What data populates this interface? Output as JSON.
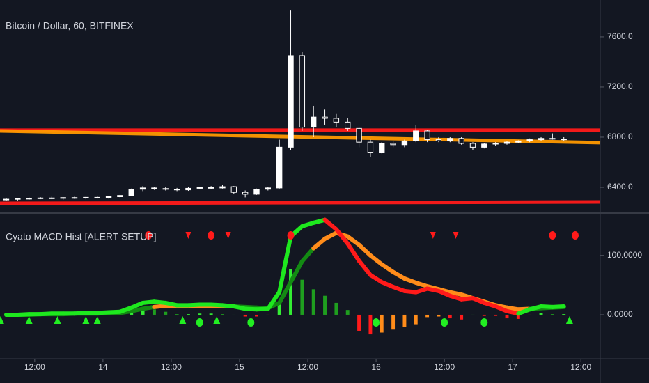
{
  "chart_data": [
    {
      "type": "candlestick",
      "title": "Bitcoin / Dollar, 60, BITFINEX",
      "x": [
        -5,
        -3,
        -1,
        1,
        3,
        5,
        7,
        9,
        11,
        13,
        15,
        17,
        19,
        21,
        23,
        25,
        27,
        29,
        31,
        33,
        35,
        37,
        39,
        41,
        43,
        45,
        47,
        49,
        51,
        53,
        55,
        57,
        59,
        61,
        63,
        65,
        67,
        69,
        71,
        73,
        75,
        77,
        79,
        81,
        83,
        85,
        87,
        89,
        91,
        93
      ],
      "open": [
        6300,
        6305,
        6310,
        6312,
        6315,
        6312,
        6318,
        6315,
        6320,
        6318,
        6325,
        6335,
        6385,
        6395,
        6390,
        6385,
        6380,
        6392,
        6398,
        6395,
        6405,
        6360,
        6345,
        6385,
        6395,
        6720,
        7450,
        6880,
        6960,
        6950,
        6920,
        6870,
        6760,
        6680,
        6750,
        6740,
        6770,
        6850,
        6780,
        6770,
        6790,
        6750,
        6720,
        6745,
        6750,
        6760,
        6770,
        6780,
        6790,
        6785
      ],
      "high": [
        6315,
        6315,
        6320,
        6322,
        6325,
        6322,
        6325,
        6325,
        6330,
        6330,
        6340,
        6390,
        6410,
        6405,
        6400,
        6395,
        6400,
        6405,
        6410,
        6420,
        6410,
        6375,
        6390,
        6405,
        6780,
        7810,
        7480,
        7050,
        7020,
        6990,
        6950,
        6880,
        6780,
        6760,
        6770,
        6780,
        6900,
        6860,
        6800,
        6800,
        6800,
        6760,
        6750,
        6760,
        6770,
        6775,
        6790,
        6800,
        6830,
        6800
      ],
      "low": [
        6290,
        6295,
        6300,
        6305,
        6305,
        6302,
        6308,
        6305,
        6310,
        6310,
        6318,
        6330,
        6370,
        6380,
        6375,
        6370,
        6372,
        6385,
        6385,
        6390,
        6350,
        6320,
        6340,
        6375,
        6390,
        6700,
        6850,
        6800,
        6900,
        6880,
        6850,
        6720,
        6640,
        6670,
        6720,
        6720,
        6760,
        6760,
        6760,
        6760,
        6740,
        6700,
        6710,
        6730,
        6740,
        6750,
        6760,
        6770,
        6780,
        6770
      ],
      "close": [
        6305,
        6310,
        6312,
        6315,
        6312,
        6318,
        6315,
        6320,
        6318,
        6325,
        6335,
        6385,
        6395,
        6390,
        6385,
        6380,
        6392,
        6398,
        6395,
        6405,
        6360,
        6345,
        6385,
        6395,
        6720,
        7450,
        6880,
        6960,
        6950,
        6920,
        6870,
        6760,
        6680,
        6750,
        6740,
        6770,
        6850,
        6780,
        6770,
        6790,
        6750,
        6720,
        6745,
        6750,
        6760,
        6770,
        6780,
        6790,
        6785,
        6782
      ],
      "color": "#ffffff",
      "levels": [
        {
          "from": 6856,
          "to": 6856,
          "color": "#ff1a1a"
        },
        {
          "from": 6850,
          "to": 6756,
          "color": "#ff9900"
        },
        {
          "from": 6272,
          "to": 6283,
          "color": "#ff1a1a"
        }
      ],
      "xlim": [
        -6.1,
        99.4
      ],
      "ylim": [
        6200,
        7894
      ],
      "yticks": [
        {
          "value": 6400,
          "label": "6400.0"
        },
        {
          "value": 6800,
          "label": "6800.0"
        },
        {
          "value": 7200,
          "label": "7200.0"
        },
        {
          "value": 7600,
          "label": "7600.0"
        }
      ]
    },
    {
      "type": "line",
      "title": "Cyato MACD Hist [ALERT SETUP]",
      "x": [
        -5,
        -3,
        -1,
        1,
        3,
        5,
        7,
        9,
        11,
        13,
        15,
        17,
        19,
        21,
        23,
        25,
        27,
        29,
        31,
        33,
        35,
        37,
        39,
        41,
        43,
        45,
        47,
        49,
        51,
        53,
        55,
        57,
        59,
        61,
        63,
        65,
        67,
        69,
        71,
        73,
        75,
        77,
        79,
        81,
        83,
        85,
        87,
        89,
        91,
        93
      ],
      "series": [
        {
          "values": [
            0,
            0,
            1,
            1,
            2,
            2,
            2,
            3,
            3,
            4,
            5,
            12,
            20,
            22,
            20,
            16,
            16,
            17,
            17,
            16,
            14,
            10,
            9,
            10,
            38,
            132,
            149,
            155,
            160,
            144,
            120,
            91,
            67,
            55,
            47,
            40,
            38,
            44,
            40,
            32,
            26,
            28,
            20,
            14,
            6,
            2,
            9,
            14,
            13,
            14
          ],
          "colors": [
            "#1ee81e",
            "#1ee81e",
            "#1ee81e",
            "#1ee81e",
            "#1ee81e",
            "#1ee81e",
            "#1ee81e",
            "#1ee81e",
            "#1ee81e",
            "#1ee81e",
            "#1ee81e",
            "#1ee81e",
            "#1ee81e",
            "#1ee81e",
            "#1ee81e",
            "#1ee81e",
            "#1ee81e",
            "#1ee81e",
            "#1ee81e",
            "#1ee81e",
            "#1ee81e",
            "#1ee81e",
            "#1ee81e",
            "#1ee81e",
            "#1ee81e",
            "#1ee81e",
            "#1ee81e",
            "#1ee81e",
            "#ff1a1a",
            "#ff1a1a",
            "#ff1a1a",
            "#ff1a1a",
            "#ff1a1a",
            "#ff1a1a",
            "#ff1a1a",
            "#ff1a1a",
            "#ff1a1a",
            "#ff1a1a",
            "#ff1a1a",
            "#ff1a1a",
            "#ff1a1a",
            "#ff1a1a",
            "#ff1a1a",
            "#ff1a1a",
            "#ff1a1a",
            "#1ee81e",
            "#1ee81e",
            "#1ee81e",
            "#1ee81e",
            "#1ee81e"
          ]
        },
        {
          "values": [
            0,
            0,
            0,
            1,
            1,
            1,
            2,
            2,
            2,
            3,
            3,
            6,
            10,
            13,
            15,
            15,
            15,
            15,
            15,
            15,
            14,
            13,
            12,
            11,
            20,
            55,
            90,
            112,
            128,
            138,
            132,
            118,
            100,
            85,
            72,
            61,
            54,
            48,
            43,
            38,
            34,
            28,
            22,
            16,
            12,
            9,
            10,
            11,
            12,
            13
          ],
          "colors": [
            "#138a13",
            "#138a13",
            "#138a13",
            "#138a13",
            "#138a13",
            "#138a13",
            "#138a13",
            "#138a13",
            "#138a13",
            "#138a13",
            "#138a13",
            "#138a13",
            "#138a13",
            "#ff8c1a",
            "#ff8c1a",
            "#ff8c1a",
            "#ff8c1a",
            "#ff8c1a",
            "#ff8c1a",
            "#ff8c1a",
            "#138a13",
            "#138a13",
            "#138a13",
            "#138a13",
            "#138a13",
            "#138a13",
            "#138a13",
            "#ff8c1a",
            "#ff8c1a",
            "#ff8c1a",
            "#ff8c1a",
            "#ff8c1a",
            "#ff8c1a",
            "#ff8c1a",
            "#ff8c1a",
            "#ff8c1a",
            "#ff8c1a",
            "#ff8c1a",
            "#ff8c1a",
            "#ff8c1a",
            "#ff8c1a",
            "#ff8c1a",
            "#ff8c1a",
            "#ff8c1a",
            "#ff8c1a",
            "#ff8c1a",
            "#138a13",
            "#138a13",
            "#138a13",
            "#138a13"
          ]
        }
      ],
      "histogram": {
        "values": [
          0,
          0,
          1,
          1,
          1,
          1,
          1,
          1,
          1,
          1,
          2,
          6,
          10,
          9,
          5,
          1,
          1,
          2,
          2,
          1,
          0,
          -3,
          -3,
          -1,
          18,
          77,
          59,
          43,
          32,
          20,
          8,
          -27,
          -33,
          -30,
          -25,
          -21,
          -16,
          -4,
          -3,
          -6,
          -8,
          0,
          -2,
          -2,
          -6,
          -7,
          -1,
          3,
          1,
          1
        ],
        "colors": {
          "up_rising": "#33ee33",
          "up_falling": "#1f9e1f",
          "down_falling": "#ff1a1a",
          "down_rising": "#ff8c1a"
        }
      },
      "sell_arrows": [
        27,
        34,
        70,
        74
      ],
      "sell_dots": [
        20,
        31,
        45,
        91,
        95
      ],
      "buy_arrows": [
        -6,
        -1,
        4,
        9,
        11,
        26,
        32,
        94
      ],
      "buy_dots": [
        29,
        38,
        60,
        72,
        79
      ],
      "sell_color": "#ff1a1a",
      "buy_color": "#22ee22",
      "xlim": [
        -6.1,
        99.4
      ],
      "ylim": [
        -74,
        169
      ],
      "yticks": [
        {
          "value": 0,
          "label": "0.0000"
        },
        {
          "value": 100,
          "label": "100.0000"
        }
      ],
      "xticks": [
        {
          "value": 0,
          "label": "12:00"
        },
        {
          "value": 12,
          "label": "14"
        },
        {
          "value": 24,
          "label": "12:00"
        },
        {
          "value": 36,
          "label": "15"
        },
        {
          "value": 48,
          "label": "12:00"
        },
        {
          "value": 60,
          "label": "16"
        },
        {
          "value": 72,
          "label": "12:00"
        },
        {
          "value": 84,
          "label": "17"
        },
        {
          "value": 96,
          "label": "12:00"
        }
      ]
    }
  ]
}
